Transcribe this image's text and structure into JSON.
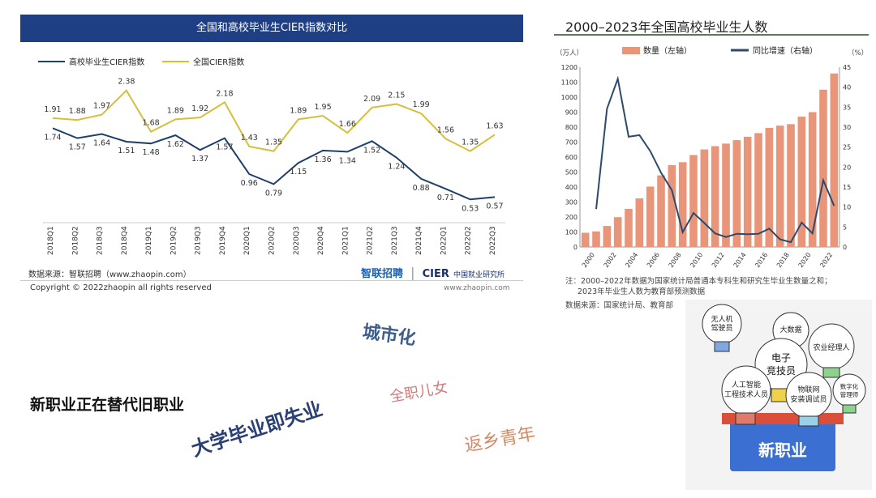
{
  "left_chart": {
    "header": "全国和高校毕业生CIER指数对比",
    "source_label": "数据来源：智联招聘（www.zhaopin.com）",
    "copyright": "Copyright © 2022zhaopin all rights reserved",
    "brand_zhaopin": "智联招聘",
    "brand_cier": "CIER",
    "brand_cier_cn": "中国就业研究所",
    "site_url": "www.zhaopin.com",
    "colors": {
      "grad": "#1f3f6b",
      "national": "#d6bf3a"
    }
  },
  "right_chart": {
    "title": "2000–2023年全国高校毕业生人数",
    "left_unit": "（万人）",
    "right_unit": "（%）",
    "note1": "注：2000–2022年数据为国家统计局普通本专科生和研究生毕业生数量之和；",
    "note2": "2023年毕业生人数为教育部预测数据",
    "source": "数据来源：国家统计局、教育部",
    "colors": {
      "bar": "#e8957a",
      "line": "#2e4a6b"
    }
  },
  "collage": {
    "city": "城市化",
    "fulltime": "全职儿女",
    "newjob_replace": "新职业正在替代旧职业",
    "grad_unemployed": "大学毕业即失业",
    "return_youth": "返乡青年"
  },
  "illustration": {
    "bulbs": [
      "无人机驾驶员",
      "大数据",
      "农业经理人",
      "电子竞技员",
      "人工智能工程技术人员",
      "物联网安装调试员",
      "数字化管理师"
    ],
    "box_label": "新职业"
  },
  "chart_data": [
    {
      "type": "line",
      "title": "全国和高校毕业生CIER指数对比",
      "categories": [
        "2018Q1",
        "2018Q2",
        "2018Q3",
        "2018Q4",
        "2019Q1",
        "2019Q2",
        "2019Q3",
        "2019Q4",
        "2020Q1",
        "2020Q2",
        "2020Q3",
        "2020Q4",
        "2021Q1",
        "2021Q2",
        "2021Q3",
        "2021Q4",
        "2022Q1",
        "2022Q2",
        "2022Q3"
      ],
      "series": [
        {
          "name": "高校毕业生CIER指数",
          "values": [
            1.74,
            1.57,
            1.64,
            1.51,
            1.48,
            1.62,
            1.37,
            1.57,
            0.96,
            0.79,
            1.15,
            1.36,
            1.34,
            1.52,
            1.24,
            0.88,
            0.71,
            0.53,
            0.57
          ]
        },
        {
          "name": "全国CIER指数",
          "values": [
            1.91,
            1.88,
            1.97,
            2.38,
            1.68,
            1.89,
            1.92,
            2.18,
            1.43,
            1.35,
            1.89,
            1.95,
            1.66,
            2.09,
            2.15,
            1.99,
            1.56,
            1.35,
            1.63
          ]
        }
      ],
      "legend": "top-left",
      "grid": "horizontal"
    },
    {
      "type": "bar",
      "title": "2000–2023年全国高校毕业生人数",
      "x": [
        2000,
        2001,
        2002,
        2003,
        2004,
        2005,
        2006,
        2007,
        2008,
        2009,
        2010,
        2011,
        2012,
        2013,
        2014,
        2015,
        2016,
        2017,
        2018,
        2019,
        2020,
        2021,
        2022,
        2023
      ],
      "x_tick_labels": [
        "2000",
        "2002",
        "2004",
        "2006",
        "2008",
        "2010",
        "2012",
        "2014",
        "2016",
        "2018",
        "2020",
        "2022"
      ],
      "series": [
        {
          "name": "数量（左轴）",
          "type": "bar",
          "axis": "left",
          "values": [
            95,
            104,
            140,
            199,
            254,
            325,
            403,
            478,
            546,
            566,
            614,
            651,
            673,
            690,
            713,
            736,
            760,
            795,
            810,
            820,
            870,
            900,
            1050,
            1158
          ]
        },
        {
          "name": "同比增速（右轴）",
          "type": "line",
          "axis": "right",
          "values": [
            null,
            9.5,
            34.6,
            42.1,
            27.6,
            28.0,
            24.0,
            18.6,
            14.2,
            3.7,
            8.5,
            6.0,
            3.4,
            2.5,
            3.3,
            3.2,
            3.3,
            4.6,
            1.9,
            1.2,
            6.1,
            3.4,
            16.7,
            10.3
          ]
        }
      ],
      "ylim_left": [
        0,
        1200
      ],
      "ylim_right": [
        0,
        45
      ],
      "yticks_left": [
        0,
        100,
        200,
        300,
        400,
        500,
        600,
        700,
        800,
        900,
        1000,
        1100,
        1200
      ],
      "yticks_right": [
        0,
        5,
        10,
        15,
        20,
        25,
        30,
        35,
        40,
        45
      ],
      "legend": "top"
    }
  ]
}
